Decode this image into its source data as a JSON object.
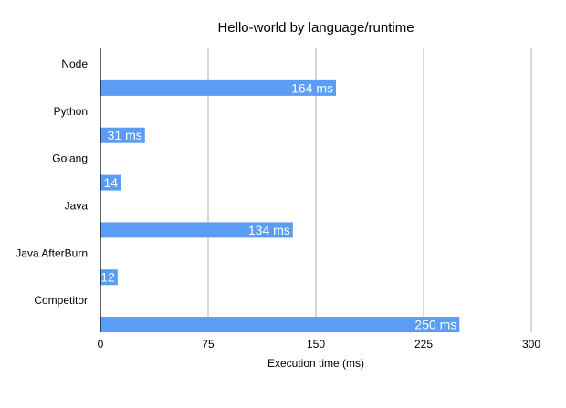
{
  "chart_data": {
    "type": "bar",
    "orientation": "horizontal",
    "title": "Hello-world by language/runtime",
    "xlabel": "Execution time (ms)",
    "ylabel": "",
    "xlim": [
      0,
      300
    ],
    "x_ticks": [
      "0",
      "75",
      "150",
      "225",
      "300"
    ],
    "x_tick_values": [
      0,
      75,
      150,
      225,
      300
    ],
    "grid": "vertical",
    "legend": "none",
    "categories": [
      "Node",
      "Python",
      "Golang",
      "Java",
      "Java AfterBurn",
      "Competitor"
    ],
    "values": [
      164,
      31,
      14,
      134,
      12,
      250
    ],
    "data_labels": [
      "164 ms",
      "31 ms",
      "14",
      "134 ms",
      "12",
      "250 ms"
    ],
    "colors": {
      "bar": "#5b9cf6",
      "grid": "#bdbdbd",
      "axis": "#000000",
      "data_label": "#ffffff",
      "text": "#000000"
    }
  }
}
